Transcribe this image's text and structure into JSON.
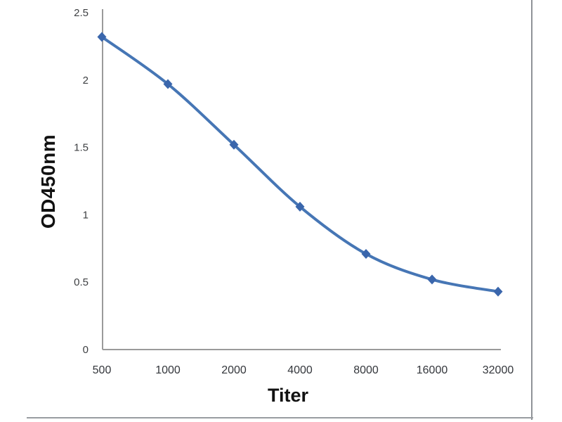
{
  "chart_data": {
    "type": "line",
    "title": "",
    "xlabel": "Titer",
    "ylabel": "OD450nm",
    "categories": [
      "500",
      "1000",
      "2000",
      "4000",
      "8000",
      "16000",
      "32000"
    ],
    "series": [
      {
        "name": "OD450nm",
        "values": [
          2.32,
          1.97,
          1.52,
          1.06,
          0.71,
          0.52,
          0.43
        ]
      }
    ],
    "ylim": [
      0,
      2.5
    ],
    "y_ticks": {
      "values": [
        0,
        0.5,
        1,
        1.5,
        2,
        2.5
      ],
      "labels": [
        "0",
        "0.5",
        "1",
        "1.5",
        "2",
        "2.5"
      ]
    },
    "grid": "off",
    "legend": "none",
    "line_smooth": true,
    "marker_shape": "diamond",
    "colors": {
      "line": "#4676b5",
      "marker": "#3a66ac",
      "axis": "#9a9a9a",
      "tick_text": "#3d3f42",
      "title_text": "#111111",
      "frame_border": "#909498"
    }
  }
}
